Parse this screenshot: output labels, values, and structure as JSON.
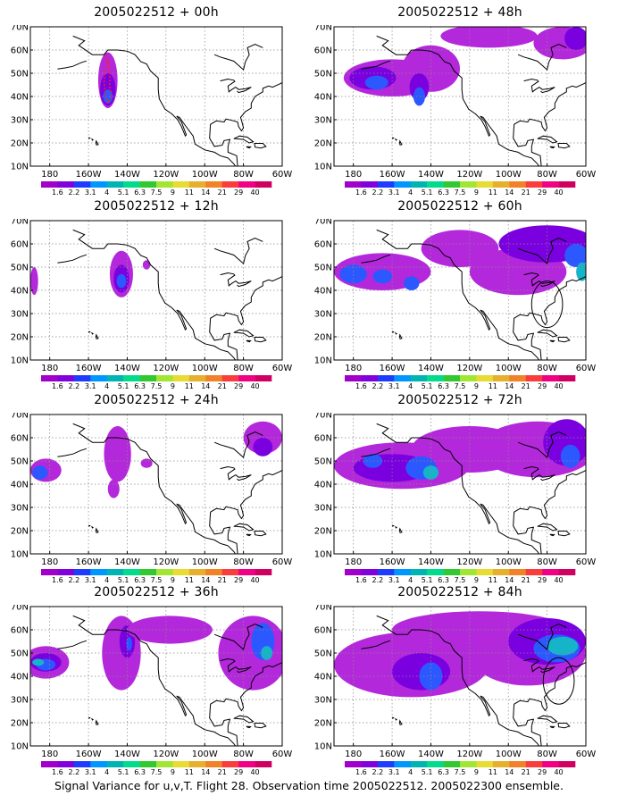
{
  "panels": [
    {
      "title": "2005022512 + 00h"
    },
    {
      "title": "2005022512 + 48h"
    },
    {
      "title": "2005022512 + 12h"
    },
    {
      "title": "2005022512 + 60h"
    },
    {
      "title": "2005022512 + 24h"
    },
    {
      "title": "2005022512 + 72h"
    },
    {
      "title": "2005022512 + 36h"
    },
    {
      "title": "2005022512 + 84h"
    }
  ],
  "lat_labels": [
    "70N",
    "60N",
    "50N",
    "40N",
    "30N",
    "20N",
    "10N"
  ],
  "lon_labels": [
    "180",
    "160W",
    "140W",
    "120W",
    "100W",
    "80W",
    "60W"
  ],
  "colorbar": {
    "labels": [
      "1.6",
      "2.2",
      "3.1",
      "4",
      "5.1",
      "6.3",
      "7.5",
      "9",
      "11",
      "14",
      "21",
      "29",
      "40"
    ],
    "colors": [
      "#a000c8",
      "#8200dc",
      "#1e3cff",
      "#0096ff",
      "#00b4b4",
      "#00dc8c",
      "#32c832",
      "#a0e632",
      "#e6dc32",
      "#e6af2d",
      "#f08228",
      "#fa3c3c",
      "#f00082",
      "#d00060"
    ]
  },
  "palette": {
    "light": "#b428dc",
    "mid": "#7a00e0",
    "blue": "#2b58ff",
    "cyan": "#16b4c8",
    "land": "#000000",
    "red": "#ff2020"
  },
  "footer": "Signal Variance for u,v,T. Flight 28. Observation time 2005022512. 2005022300 ensemble."
}
